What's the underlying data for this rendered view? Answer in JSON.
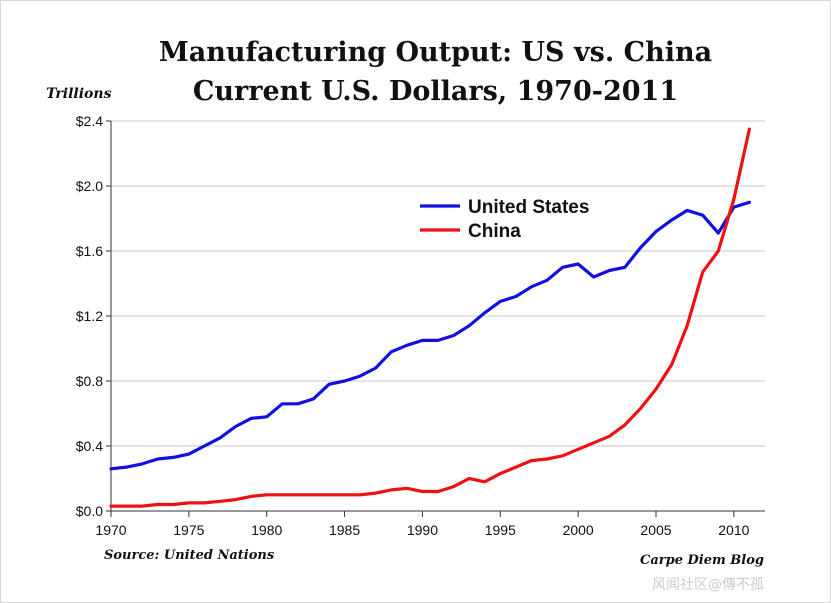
{
  "chart_data": {
    "type": "line",
    "title": "Manufacturing Output: US vs. China",
    "subtitle": "Current U.S. Dollars, 1970-2011",
    "ylabel": "Trillions",
    "xlabel": "",
    "source": "Source: United Nations",
    "credit": "Carpe Diem Blog",
    "ylim": [
      0,
      2.4
    ],
    "xlim": [
      1970,
      2012
    ],
    "y_ticks": [
      0,
      0.4,
      0.8,
      1.2,
      1.6,
      2.0,
      2.4
    ],
    "y_tick_labels": [
      "$0.0",
      "$0.4",
      "$0.8",
      "$1.2",
      "$1.6",
      "$2.0",
      "$2.4"
    ],
    "x_ticks": [
      1970,
      1975,
      1980,
      1985,
      1990,
      1995,
      2000,
      2005,
      2010
    ],
    "x_tick_labels": [
      "1970",
      "1975",
      "1980",
      "1985",
      "1990",
      "1995",
      "2000",
      "2005",
      "2010"
    ],
    "grid": true,
    "legend_position": "upper-center",
    "x": [
      1970,
      1971,
      1972,
      1973,
      1974,
      1975,
      1976,
      1977,
      1978,
      1979,
      1980,
      1981,
      1982,
      1983,
      1984,
      1985,
      1986,
      1987,
      1988,
      1989,
      1990,
      1991,
      1992,
      1993,
      1994,
      1995,
      1996,
      1997,
      1998,
      1999,
      2000,
      2001,
      2002,
      2003,
      2004,
      2005,
      2006,
      2007,
      2008,
      2009,
      2010,
      2011
    ],
    "series": [
      {
        "name": "United States",
        "color": "#1010e0",
        "values": [
          0.26,
          0.27,
          0.29,
          0.32,
          0.33,
          0.35,
          0.4,
          0.45,
          0.52,
          0.57,
          0.58,
          0.66,
          0.66,
          0.69,
          0.78,
          0.8,
          0.83,
          0.88,
          0.98,
          1.02,
          1.05,
          1.05,
          1.08,
          1.14,
          1.22,
          1.29,
          1.32,
          1.38,
          1.42,
          1.5,
          1.52,
          1.44,
          1.48,
          1.5,
          1.62,
          1.72,
          1.79,
          1.85,
          1.82,
          1.71,
          1.87,
          1.9
        ]
      },
      {
        "name": "China",
        "color": "#ee1111",
        "values": [
          0.03,
          0.03,
          0.03,
          0.04,
          0.04,
          0.05,
          0.05,
          0.06,
          0.07,
          0.09,
          0.1,
          0.1,
          0.1,
          0.1,
          0.1,
          0.1,
          0.1,
          0.11,
          0.13,
          0.14,
          0.12,
          0.12,
          0.15,
          0.2,
          0.18,
          0.23,
          0.27,
          0.31,
          0.32,
          0.34,
          0.38,
          0.42,
          0.46,
          0.53,
          0.63,
          0.75,
          0.9,
          1.14,
          1.47,
          1.6,
          1.92,
          2.35
        ]
      }
    ]
  },
  "watermark": "风闻社区@傳不孤"
}
